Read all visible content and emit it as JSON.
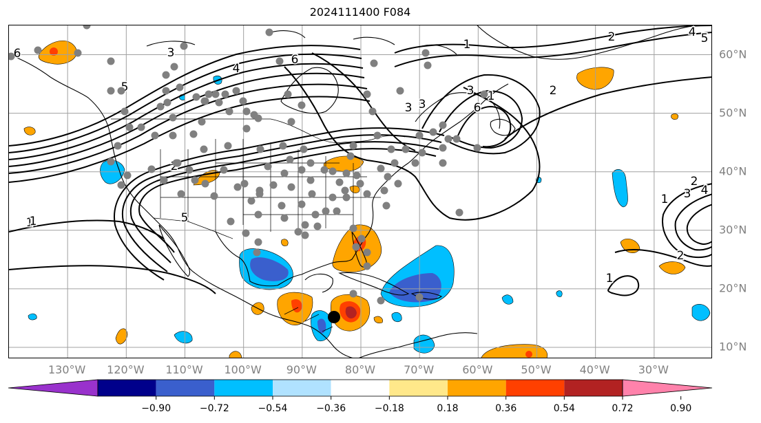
{
  "title": "2024111400 F084",
  "map": {
    "projection": "equirectangular",
    "lon_range": [
      -140,
      -20
    ],
    "lat_range": [
      8,
      65
    ],
    "lon_ticks": [
      "130°W",
      "120°W",
      "110°W",
      "100°W",
      "90°W",
      "80°W",
      "70°W",
      "60°W",
      "50°W",
      "40°W",
      "30°W"
    ],
    "lon_tick_values": [
      -130,
      -120,
      -110,
      -100,
      -90,
      -80,
      -70,
      -60,
      -50,
      -40,
      -30
    ],
    "lat_ticks": [
      "60°N",
      "50°N",
      "40°N",
      "30°N",
      "20°N",
      "10°N"
    ],
    "lat_tick_values": [
      60,
      50,
      40,
      30,
      20,
      10
    ],
    "grid": true,
    "contour_color": "#000000",
    "contour_labels": [
      "1",
      "2",
      "3",
      "4",
      "5",
      "6",
      "1",
      "2",
      "3",
      "1",
      "2",
      "3",
      "4",
      "5",
      "6",
      "1",
      "2",
      "3",
      "1",
      "2",
      "3",
      "4",
      "5",
      "6",
      "1"
    ],
    "marker_color": "#808080",
    "highlight_point_color": "#000000"
  },
  "colorbar": {
    "tick_labels": [
      "−0.90",
      "−0.72",
      "−0.54",
      "−0.36",
      "−0.18",
      "0.18",
      "0.36",
      "0.54",
      "0.72",
      "0.90"
    ],
    "colors": [
      "#9932cc",
      "#00008b",
      "#3a5fcd",
      "#00bfff",
      "#b0e2ff",
      "#ffffff",
      "#ffe88a",
      "#ffa500",
      "#ff4000",
      "#b22222",
      "#ff82ab"
    ],
    "extend": "both"
  }
}
